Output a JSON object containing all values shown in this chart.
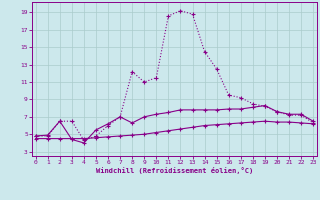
{
  "xlabel": "Windchill (Refroidissement éolien,°C)",
  "bg_color": "#cce8ec",
  "grid_color": "#aacccc",
  "line_color": "#880088",
  "x_ticks": [
    0,
    1,
    2,
    3,
    4,
    5,
    6,
    7,
    8,
    9,
    10,
    11,
    12,
    13,
    14,
    15,
    16,
    17,
    18,
    19,
    20,
    21,
    22,
    23
  ],
  "y_ticks": [
    3,
    5,
    7,
    9,
    11,
    13,
    15,
    17,
    19
  ],
  "xlim": [
    -0.3,
    23.3
  ],
  "ylim": [
    2.5,
    20.2
  ],
  "series1_x": [
    0,
    1,
    2,
    3,
    4,
    5,
    6,
    7,
    8,
    9,
    10,
    11,
    12,
    13,
    14,
    15,
    16,
    17,
    18,
    19,
    20,
    21,
    22,
    23
  ],
  "series1_y": [
    4.8,
    4.8,
    6.5,
    6.5,
    4.3,
    4.8,
    6.0,
    7.0,
    12.2,
    11.0,
    11.5,
    18.6,
    19.2,
    18.8,
    14.5,
    12.5,
    9.5,
    9.2,
    8.5,
    8.2,
    7.6,
    7.2,
    7.2,
    6.3
  ],
  "series2_x": [
    0,
    1,
    2,
    3,
    4,
    5,
    6,
    7,
    8,
    9,
    10,
    11,
    12,
    13,
    14,
    15,
    16,
    17,
    18,
    19,
    20,
    21,
    22,
    23
  ],
  "series2_y": [
    4.8,
    4.9,
    6.5,
    4.4,
    4.0,
    5.5,
    6.2,
    7.0,
    6.3,
    7.0,
    7.3,
    7.5,
    7.8,
    7.8,
    7.8,
    7.8,
    7.9,
    7.9,
    8.1,
    8.3,
    7.6,
    7.3,
    7.3,
    6.5
  ],
  "series3_x": [
    0,
    1,
    2,
    3,
    4,
    5,
    6,
    7,
    8,
    9,
    10,
    11,
    12,
    13,
    14,
    15,
    16,
    17,
    18,
    19,
    20,
    21,
    22,
    23
  ],
  "series3_y": [
    4.5,
    4.5,
    4.5,
    4.5,
    4.5,
    4.6,
    4.7,
    4.8,
    4.9,
    5.0,
    5.2,
    5.4,
    5.6,
    5.8,
    6.0,
    6.1,
    6.2,
    6.3,
    6.4,
    6.5,
    6.4,
    6.4,
    6.3,
    6.2
  ]
}
